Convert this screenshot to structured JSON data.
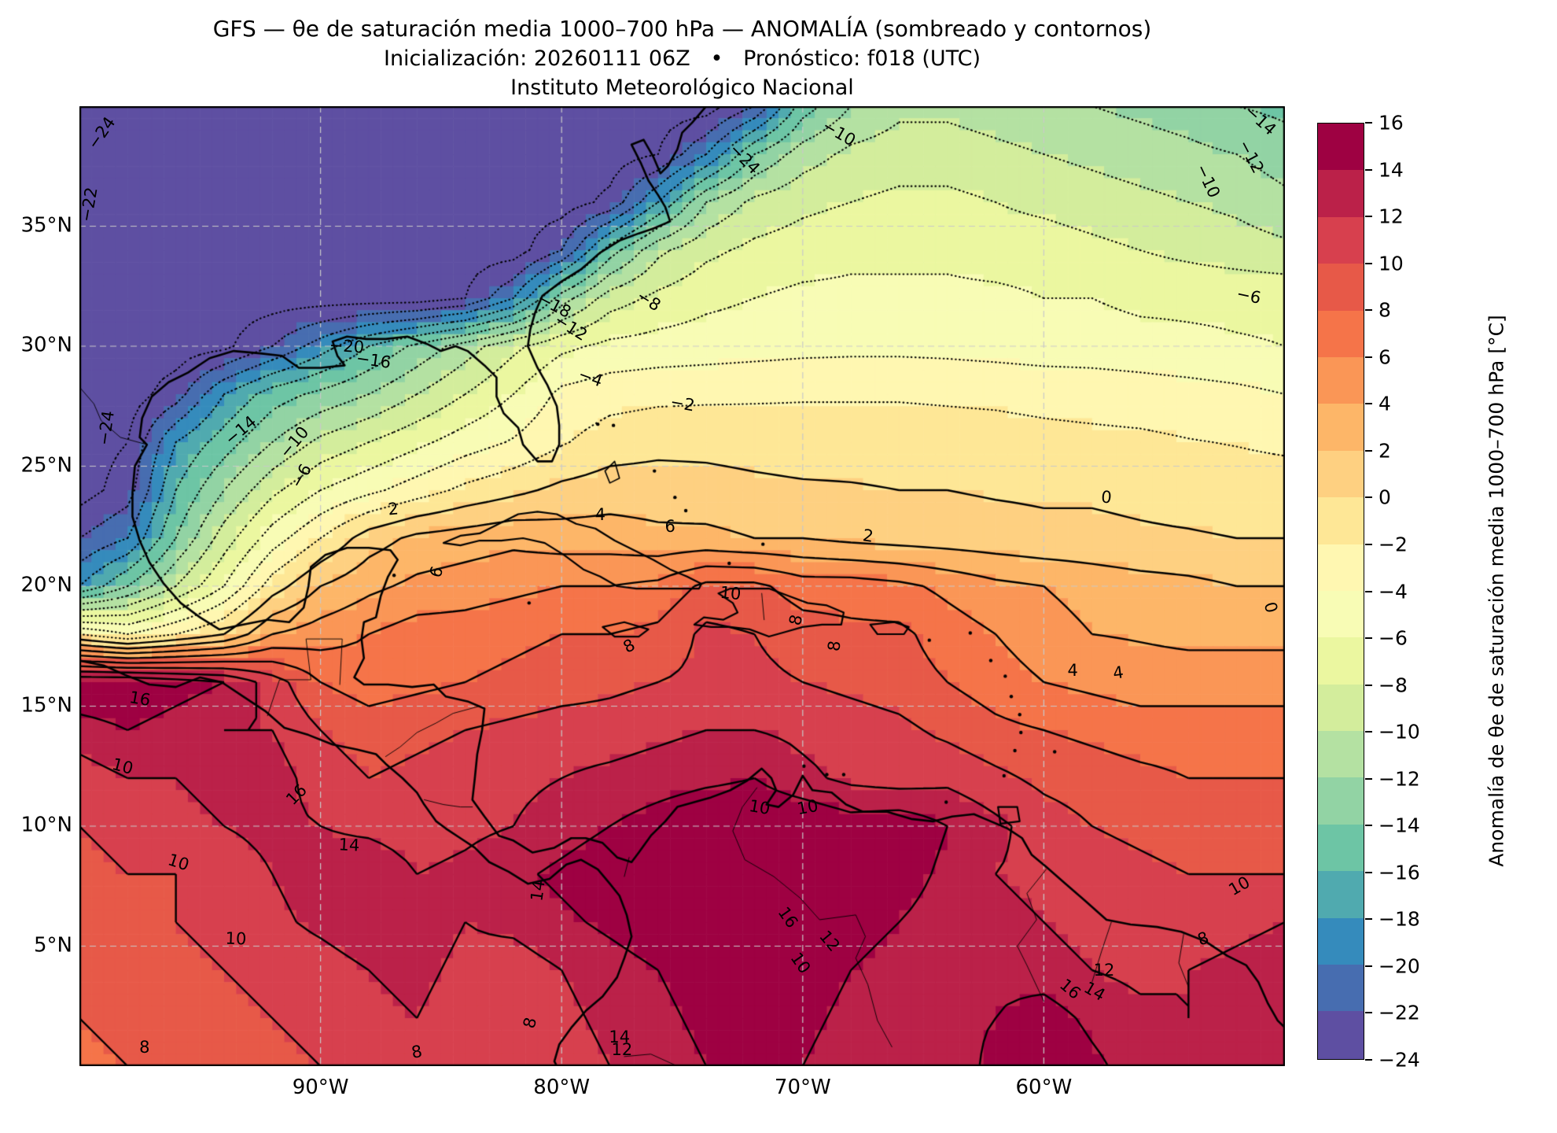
{
  "figure": {
    "title": "GFS — θe de saturación media 1000–700 hPa — ANOMALÍA (sombreado y contornos)",
    "subtitle": "Inicialización: 20260111 06Z   •   Pronóstico: f018 (UTC)",
    "institution": "Instituto Meteorológico Nacional"
  },
  "axes": {
    "x_ticks": [
      {
        "label": "90°W",
        "lon": -90
      },
      {
        "label": "80°W",
        "lon": -80
      },
      {
        "label": "70°W",
        "lon": -70
      },
      {
        "label": "60°W",
        "lon": -60
      }
    ],
    "y_ticks": [
      {
        "label": "35°N",
        "lat": 35
      },
      {
        "label": "30°N",
        "lat": 30
      },
      {
        "label": "25°N",
        "lat": 25
      },
      {
        "label": "20°N",
        "lat": 20
      },
      {
        "label": "15°N",
        "lat": 15
      },
      {
        "label": "10°N",
        "lat": 10
      },
      {
        "label": "5°N",
        "lat": 5
      }
    ]
  },
  "colorbar": {
    "label": "Anomalía de θe de saturación media 1000–700 hPa [°C]",
    "min": -24,
    "max": 16,
    "step": 2,
    "tick_labels": [
      "16",
      "14",
      "12",
      "10",
      "8",
      "6",
      "4",
      "2",
      "0",
      "−2",
      "−4",
      "−6",
      "−8",
      "−10",
      "−12",
      "−14",
      "−16",
      "−18",
      "−20",
      "−22",
      "−24"
    ],
    "colors_low_to_high": [
      "#5E4FA2",
      "#476DB0",
      "#358BBC",
      "#50AAAF",
      "#6DC5A5",
      "#92D3A4",
      "#B4E1A2",
      "#D3ED9C",
      "#EBF7A0",
      "#F8FCB5",
      "#FFF7B1",
      "#FEE796",
      "#FED081",
      "#FDB668",
      "#FA9656",
      "#F57449",
      "#E75948",
      "#D7404E",
      "#BB2149",
      "#9E0142"
    ]
  },
  "chart_data": {
    "type": "heatmap",
    "subtype": "filled_contours_with_line_contours",
    "title": "GFS — θe de saturación media 1000–700 hPa — ANOMALÍA (sombreado y contornos)",
    "units": "°C",
    "lon_range": [
      -100,
      -50
    ],
    "lat_range": [
      0,
      40
    ],
    "grid_step_deg": 2,
    "lons": [
      -100,
      -98,
      -96,
      -94,
      -92,
      -90,
      -88,
      -86,
      -84,
      -82,
      -80,
      -78,
      -76,
      -74,
      -72,
      -70,
      -68,
      -66,
      -64,
      -62,
      -60,
      -58,
      -56,
      -54,
      -52,
      -50
    ],
    "lats": [
      40,
      38,
      36,
      34,
      32,
      30,
      28,
      26,
      24,
      22,
      20,
      18,
      16,
      14,
      12,
      10,
      8,
      6,
      4,
      2,
      0
    ],
    "anomaly_values": [
      [
        -25,
        -25,
        -25,
        -25,
        -25,
        -25,
        -25,
        -25,
        -25,
        -25,
        -25,
        -25,
        -25,
        -25,
        -22,
        -15,
        -12,
        -10.5,
        -10.5,
        -11,
        -11.5,
        -12,
        -12.5,
        -13,
        -14,
        -14.5
      ],
      [
        -25,
        -25,
        -25,
        -25,
        -25,
        -25,
        -25,
        -25,
        -25,
        -25,
        -25,
        -25,
        -24,
        -20,
        -14,
        -11,
        -9.5,
        -9,
        -9,
        -9.5,
        -10,
        -10.5,
        -11,
        -11.5,
        -12,
        -13
      ],
      [
        -25,
        -25,
        -25,
        -25,
        -25,
        -25,
        -25,
        -25,
        -25,
        -25,
        -25,
        -23.5,
        -18,
        -12,
        -9.5,
        -8.5,
        -8,
        -7.5,
        -7.5,
        -8,
        -8.5,
        -9,
        -9.5,
        -10,
        -10.5,
        -11.5
      ],
      [
        -25,
        -25,
        -25,
        -25,
        -25,
        -25,
        -25,
        -25,
        -25,
        -25,
        -22,
        -15,
        -10.5,
        -8.5,
        -7.5,
        -7,
        -6.5,
        -6.5,
        -6.5,
        -7,
        -7,
        -7.5,
        -8,
        -8.5,
        -9,
        -9.5
      ],
      [
        -25,
        -25,
        -25,
        -25,
        -25,
        -25,
        -25,
        -25,
        -24,
        -20,
        -13,
        -9,
        -7.5,
        -6.5,
        -6,
        -5.5,
        -5.5,
        -5.5,
        -5.5,
        -5.5,
        -6,
        -6,
        -6.5,
        -6.5,
        -6.5,
        -6.5
      ],
      [
        -25,
        -25,
        -25,
        -24.5,
        -22,
        -19,
        -16,
        -13.5,
        -11,
        -8.5,
        -6.5,
        -5.5,
        -5.2,
        -5,
        -4.8,
        -4.6,
        -4.5,
        -4.5,
        -4.6,
        -4.8,
        -5,
        -5,
        -5.2,
        -5.5,
        -5.8,
        -6
      ],
      [
        -25,
        -25,
        -23,
        -18,
        -15,
        -13.5,
        -12,
        -10,
        -8,
        -6,
        -3.5,
        -2.8,
        -2.5,
        -2.4,
        -2.3,
        -2.2,
        -2.2,
        -2.2,
        -2.3,
        -2.4,
        -2.6,
        -2.8,
        -3,
        -3.2,
        -3.5,
        -4
      ],
      [
        -25,
        -24,
        -18,
        -15,
        -12,
        -9.5,
        -8,
        -6.5,
        -5,
        -3.8,
        -2.2,
        -1,
        -0.6,
        -0.6,
        -0.8,
        -1,
        -1,
        -1,
        -1.1,
        -1.2,
        -1.4,
        -1.5,
        -1.6,
        -1.9,
        -2.1,
        -2.4
      ],
      [
        -25,
        -23,
        -16,
        -12,
        -8.5,
        -6,
        -4.5,
        -3,
        -1.5,
        -0.5,
        0.5,
        1,
        1,
        0.8,
        0.5,
        0.3,
        0.2,
        0,
        0,
        -0.2,
        -0.3,
        -0.3,
        -0.5,
        -0.8,
        -1,
        -1
      ],
      [
        -22,
        -20,
        -14,
        -9,
        -5,
        -2,
        1,
        2.5,
        3,
        3.5,
        3,
        3,
        2.5,
        2.5,
        2,
        2,
        1.5,
        1.2,
        1,
        0.8,
        0.5,
        0.5,
        0.3,
        0.2,
        0,
        0
      ],
      [
        -18,
        -14,
        -10,
        -6,
        -1,
        2,
        3.5,
        4.5,
        5,
        5.5,
        6,
        6,
        6.5,
        8.5,
        8.5,
        7,
        7,
        6.5,
        5.5,
        4.5,
        4,
        3.3,
        2.8,
        2.5,
        2,
        2
      ],
      [
        -2,
        -4,
        -2,
        0,
        4,
        5,
        6,
        7,
        7,
        7.5,
        8,
        8,
        8.5,
        10.5,
        10,
        9,
        8.5,
        8.5,
        7,
        6,
        4.8,
        4,
        3.8,
        3.5,
        3.5,
        3.5
      ],
      [
        16,
        16,
        15,
        14,
        11,
        8,
        7,
        7.5,
        8,
        8.5,
        9,
        9.5,
        10,
        10.5,
        10.5,
        10,
        9.5,
        9,
        8,
        7,
        6,
        5.5,
        5,
        5,
        5,
        5
      ],
      [
        13,
        14,
        13,
        12,
        12,
        10,
        9,
        9.5,
        10,
        10.5,
        11,
        11,
        11.5,
        12,
        12,
        11.5,
        11,
        10.5,
        9.5,
        8.5,
        8,
        7.5,
        7,
        7,
        7,
        7
      ],
      [
        11,
        12,
        12,
        13,
        13,
        11,
        10,
        10.5,
        11,
        11.5,
        12,
        12.5,
        13,
        13.5,
        14,
        12.5,
        11.5,
        11,
        11.5,
        10.5,
        9.5,
        9,
        8.5,
        8,
        8,
        8
      ],
      [
        10,
        10.5,
        11,
        12,
        12.5,
        12,
        11.5,
        11,
        11.5,
        12,
        13,
        14,
        15,
        16,
        16,
        16,
        15,
        15.5,
        14,
        12.5,
        11,
        10,
        9.5,
        9,
        9,
        9.5
      ],
      [
        9.5,
        10,
        10,
        11,
        12,
        13,
        13.5,
        12,
        12.5,
        13.5,
        14.5,
        15.5,
        16,
        16,
        16,
        16,
        16,
        15,
        13.5,
        12,
        11.5,
        11,
        10.5,
        10,
        10,
        10
      ],
      [
        9,
        9.5,
        10,
        10.5,
        11.5,
        12.5,
        13.5,
        13,
        12,
        12.5,
        13.5,
        14.5,
        15.5,
        16,
        16,
        15.5,
        14.5,
        14,
        13,
        12.5,
        12,
        11,
        10.5,
        11,
        11.5,
        12
      ],
      [
        8.5,
        9,
        9.5,
        10,
        10.5,
        11,
        12,
        12.5,
        11.5,
        11,
        12,
        13,
        14,
        15,
        15.5,
        15,
        14,
        13.5,
        13,
        13.5,
        13,
        12,
        11.5,
        12,
        12.5,
        13
      ],
      [
        8,
        8.5,
        9,
        9.5,
        10,
        10.5,
        11.5,
        12,
        11,
        10.5,
        11.5,
        12.5,
        13.5,
        14.5,
        15,
        14.5,
        13.5,
        13,
        13.5,
        14,
        15,
        13.5,
        12.5,
        12,
        12.5,
        13
      ],
      [
        7.5,
        8,
        8.5,
        9,
        9.5,
        10,
        11,
        11.5,
        10.5,
        10,
        11,
        12,
        13,
        14,
        14.5,
        14,
        13,
        12.5,
        13,
        14.5,
        16,
        14.5,
        13,
        12.5,
        13,
        13.5
      ]
    ],
    "contours": {
      "level_min": -24,
      "level_max": 16,
      "step": 2,
      "negative_style": "dotted",
      "nonnegative_style": "solid"
    },
    "gridlines": {
      "lat": [
        5,
        10,
        15,
        20,
        25,
        30,
        35
      ],
      "lon": [
        -90,
        -80,
        -70,
        -60
      ],
      "style": "dashed"
    },
    "contour_labels": [
      {
        "t": "−24",
        "lon": -99.1,
        "lat": 38.9,
        "r": -55
      },
      {
        "t": "−22",
        "lon": -99.6,
        "lat": 35.9,
        "r": -80
      },
      {
        "t": "−24",
        "lon": -72.4,
        "lat": 37.8,
        "r": 45
      },
      {
        "t": "−10",
        "lon": -68.5,
        "lat": 38.9,
        "r": 30
      },
      {
        "t": "−14",
        "lon": -51.0,
        "lat": 39.4,
        "r": 42
      },
      {
        "t": "−12",
        "lon": -51.4,
        "lat": 37.9,
        "r": 62
      },
      {
        "t": "−10",
        "lon": -53.2,
        "lat": 36.9,
        "r": 65
      },
      {
        "t": "−6",
        "lon": -51.5,
        "lat": 32.1,
        "r": 12
      },
      {
        "t": "−20",
        "lon": -88.9,
        "lat": 30.0,
        "r": 4
      },
      {
        "t": "−16",
        "lon": -87.8,
        "lat": 29.4,
        "r": 8
      },
      {
        "t": "−18",
        "lon": -80.3,
        "lat": 31.7,
        "r": 28
      },
      {
        "t": "−12",
        "lon": -79.6,
        "lat": 30.8,
        "r": 32
      },
      {
        "t": "−8",
        "lon": -76.4,
        "lat": 31.9,
        "r": 32
      },
      {
        "t": "−4",
        "lon": -78.8,
        "lat": 28.7,
        "r": 20
      },
      {
        "t": "−2",
        "lon": -75.0,
        "lat": 27.6,
        "r": 10
      },
      {
        "t": "−24",
        "lon": -98.9,
        "lat": 26.6,
        "r": -82
      },
      {
        "t": "−14",
        "lon": -93.3,
        "lat": 26.5,
        "r": -40
      },
      {
        "t": "−10",
        "lon": -91.1,
        "lat": 26.0,
        "r": -50
      },
      {
        "t": "−6",
        "lon": -90.8,
        "lat": 24.6,
        "r": -60
      },
      {
        "t": "2",
        "lon": -87.0,
        "lat": 23.2,
        "r": -5
      },
      {
        "t": "4",
        "lon": -78.4,
        "lat": 23.0,
        "r": 0
      },
      {
        "t": "6",
        "lon": -85.2,
        "lat": 20.6,
        "r": -70
      },
      {
        "t": "6",
        "lon": -75.5,
        "lat": 22.5,
        "r": 0
      },
      {
        "t": "2",
        "lon": -67.3,
        "lat": 22.1,
        "r": 8
      },
      {
        "t": "10",
        "lon": -73.0,
        "lat": 19.7,
        "r": 5
      },
      {
        "t": "8",
        "lon": -70.3,
        "lat": 18.6,
        "r": -78
      },
      {
        "t": "8",
        "lon": -68.7,
        "lat": 17.5,
        "r": -83
      },
      {
        "t": "8",
        "lon": -77.2,
        "lat": 17.5,
        "r": -28
      },
      {
        "t": "0",
        "lon": -57.4,
        "lat": 23.7,
        "r": 5
      },
      {
        "t": "0",
        "lon": -50.6,
        "lat": 19.1,
        "r": 75
      },
      {
        "t": "4",
        "lon": -58.8,
        "lat": 16.5,
        "r": 0
      },
      {
        "t": "4",
        "lon": -56.9,
        "lat": 16.4,
        "r": -8
      },
      {
        "t": "16",
        "lon": -97.5,
        "lat": 15.3,
        "r": 10
      },
      {
        "t": "10",
        "lon": -98.2,
        "lat": 12.5,
        "r": 15
      },
      {
        "t": "16",
        "lon": -91.0,
        "lat": 11.3,
        "r": -45
      },
      {
        "t": "14",
        "lon": -88.8,
        "lat": 9.2,
        "r": 3
      },
      {
        "t": "10",
        "lon": -95.9,
        "lat": 8.5,
        "r": 18
      },
      {
        "t": "10",
        "lon": -93.5,
        "lat": 5.3,
        "r": 2
      },
      {
        "t": "14",
        "lon": -81.0,
        "lat": 7.3,
        "r": -82
      },
      {
        "t": "10",
        "lon": -71.8,
        "lat": 10.8,
        "r": 10
      },
      {
        "t": "10",
        "lon": -69.8,
        "lat": 10.8,
        "r": -10
      },
      {
        "t": "16",
        "lon": -70.6,
        "lat": 6.2,
        "r": 55
      },
      {
        "t": "12",
        "lon": -68.9,
        "lat": 5.2,
        "r": 50
      },
      {
        "t": "10",
        "lon": -70.1,
        "lat": 4.3,
        "r": 55
      },
      {
        "t": "8",
        "lon": -81.3,
        "lat": 1.8,
        "r": -75
      },
      {
        "t": "14",
        "lon": -77.6,
        "lat": 1.2,
        "r": 0
      },
      {
        "t": "12",
        "lon": -77.5,
        "lat": 0.7,
        "r": 0
      },
      {
        "t": "10",
        "lon": -51.9,
        "lat": 7.5,
        "r": -30
      },
      {
        "t": "12",
        "lon": -57.5,
        "lat": 4.0,
        "r": 0
      },
      {
        "t": "16",
        "lon": -58.9,
        "lat": 3.2,
        "r": 40
      },
      {
        "t": "14",
        "lon": -57.9,
        "lat": 3.1,
        "r": 30
      },
      {
        "t": "8",
        "lon": -97.3,
        "lat": 0.8,
        "r": 0
      },
      {
        "t": "8",
        "lon": -86.0,
        "lat": 0.6,
        "r": -10
      },
      {
        "t": "8",
        "lon": -53.4,
        "lat": 5.3,
        "r": -20
      }
    ]
  }
}
